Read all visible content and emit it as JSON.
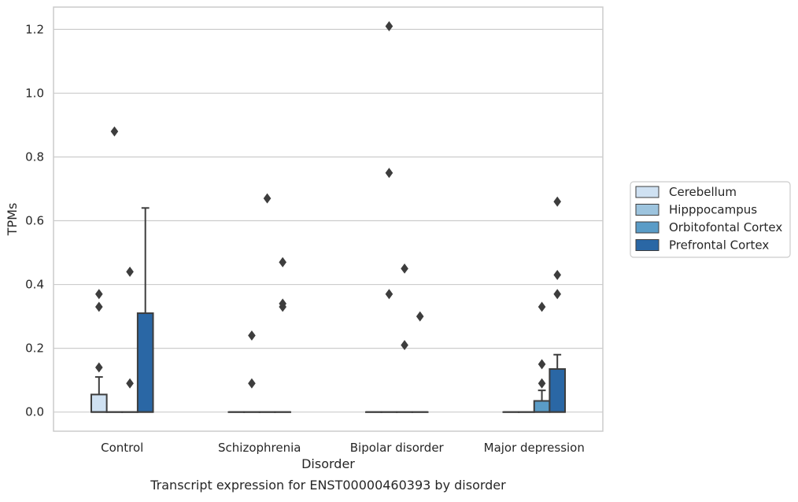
{
  "chart_data": {
    "type": "box",
    "ylabel": "TPMs",
    "xlabel": "Disorder",
    "caption": "Transcript expression for ENST00000460393 by disorder",
    "ylim": [
      -0.06,
      1.27
    ],
    "yticks": [
      0.0,
      0.2,
      0.4,
      0.6,
      0.8,
      1.0,
      1.2
    ],
    "ytick_labels": [
      "0.0",
      "0.2",
      "0.4",
      "0.6",
      "0.8",
      "1.0",
      "1.2"
    ],
    "grid": "horizontal",
    "legend_position": "right",
    "categories": [
      "Control",
      "Schizophrenia",
      "Bipolar disorder",
      "Major depression"
    ],
    "series": [
      {
        "name": "Cerebellum",
        "color": "#cfe1f2"
      },
      {
        "name": "Hipppocampus",
        "color": "#9dc4de"
      },
      {
        "name": "Orbitofontal Cortex",
        "color": "#5a9cc7"
      },
      {
        "name": "Prefrontal Cortex",
        "color": "#2a67a5"
      }
    ],
    "boxes": [
      [
        {
          "min": 0,
          "q1": 0,
          "median": 0,
          "q3": 0.055,
          "max": 0.11,
          "outliers": [
            0.14,
            0.33,
            0.37
          ]
        },
        {
          "min": 0,
          "q1": 0,
          "median": 0,
          "q3": 0,
          "max": 0,
          "outliers": [
            0.88
          ]
        },
        {
          "min": 0,
          "q1": 0,
          "median": 0,
          "q3": 0,
          "max": 0,
          "outliers": [
            0.09,
            0.44
          ]
        },
        {
          "min": 0,
          "q1": 0,
          "median": 0,
          "q3": 0.31,
          "max": 0.64,
          "outliers": []
        }
      ],
      [
        {
          "min": 0,
          "q1": 0,
          "median": 0,
          "q3": 0,
          "max": 0,
          "outliers": []
        },
        {
          "min": 0,
          "q1": 0,
          "median": 0,
          "q3": 0,
          "max": 0,
          "outliers": [
            0.09,
            0.24
          ]
        },
        {
          "min": 0,
          "q1": 0,
          "median": 0,
          "q3": 0,
          "max": 0,
          "outliers": [
            0.67
          ]
        },
        {
          "min": 0,
          "q1": 0,
          "median": 0,
          "q3": 0,
          "max": 0,
          "outliers": [
            0.33,
            0.34,
            0.47
          ]
        }
      ],
      [
        {
          "min": 0,
          "q1": 0,
          "median": 0,
          "q3": 0,
          "max": 0,
          "outliers": []
        },
        {
          "min": 0,
          "q1": 0,
          "median": 0,
          "q3": 0,
          "max": 0,
          "outliers": [
            0.37,
            0.75,
            1.21
          ]
        },
        {
          "min": 0,
          "q1": 0,
          "median": 0,
          "q3": 0,
          "max": 0,
          "outliers": [
            0.21,
            0.45
          ]
        },
        {
          "min": 0,
          "q1": 0,
          "median": 0,
          "q3": 0,
          "max": 0,
          "outliers": [
            0.3
          ]
        }
      ],
      [
        {
          "min": 0,
          "q1": 0,
          "median": 0,
          "q3": 0,
          "max": 0,
          "outliers": []
        },
        {
          "min": 0,
          "q1": 0,
          "median": 0,
          "q3": 0,
          "max": 0,
          "outliers": []
        },
        {
          "min": 0,
          "q1": 0,
          "median": 0,
          "q3": 0.035,
          "max": 0.068,
          "outliers": [
            0.09,
            0.15,
            0.33
          ]
        },
        {
          "min": 0,
          "q1": 0,
          "median": 0,
          "q3": 0.135,
          "max": 0.18,
          "outliers": [
            0.37,
            0.43,
            0.66
          ]
        }
      ]
    ]
  }
}
